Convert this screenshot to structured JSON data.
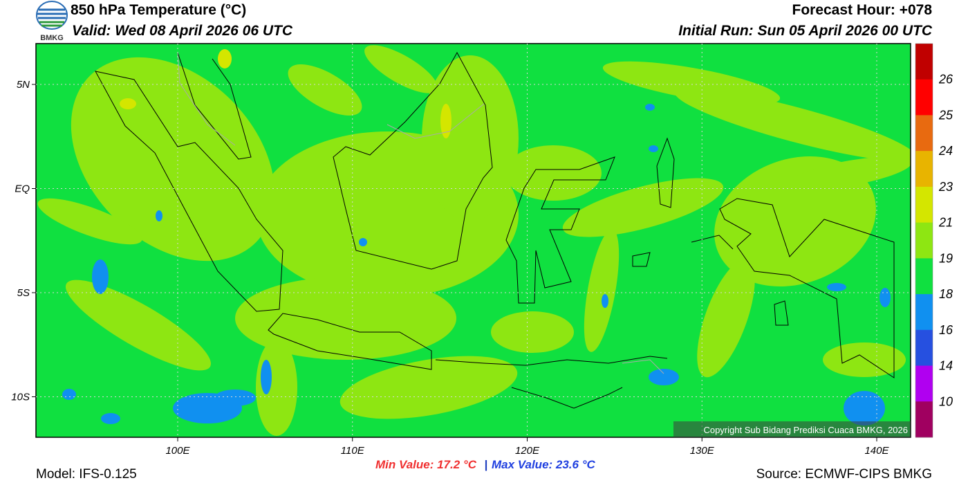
{
  "header": {
    "title": "850 hPa Temperature (°C)",
    "valid": "Valid: Wed 08 April 2026 06 UTC",
    "forecast_hour": "Forecast Hour: +078",
    "initial_run": "Initial Run: Sun 05 April 2026 00 UTC",
    "logo": "BMKG"
  },
  "map": {
    "lat_labels": [
      "5N",
      "EQ",
      "5S",
      "10S"
    ],
    "lon_labels": [
      "100E",
      "110E",
      "120E",
      "130E",
      "140E"
    ],
    "copyright": "Copyright Sub Bidang Prediksi Cuaca BMKG, 2026"
  },
  "colorbar": {
    "labels": [
      "26",
      "25",
      "24",
      "23",
      "21",
      "19",
      "18",
      "16",
      "14",
      "10"
    ],
    "colors": [
      "#c00000",
      "#ff0000",
      "#e86a10",
      "#e8b400",
      "#d4e600",
      "#8ee612",
      "#10e040",
      "#1090f0",
      "#2650e0",
      "#b000f0",
      "#a00060"
    ]
  },
  "footer": {
    "model": "Model: IFS-0.125",
    "min": "Min Value: 17.2 °C",
    "separator": "|",
    "max": "Max Value: 23.6 °C",
    "source": "Source: ECMWF-CIPS BMKG"
  }
}
